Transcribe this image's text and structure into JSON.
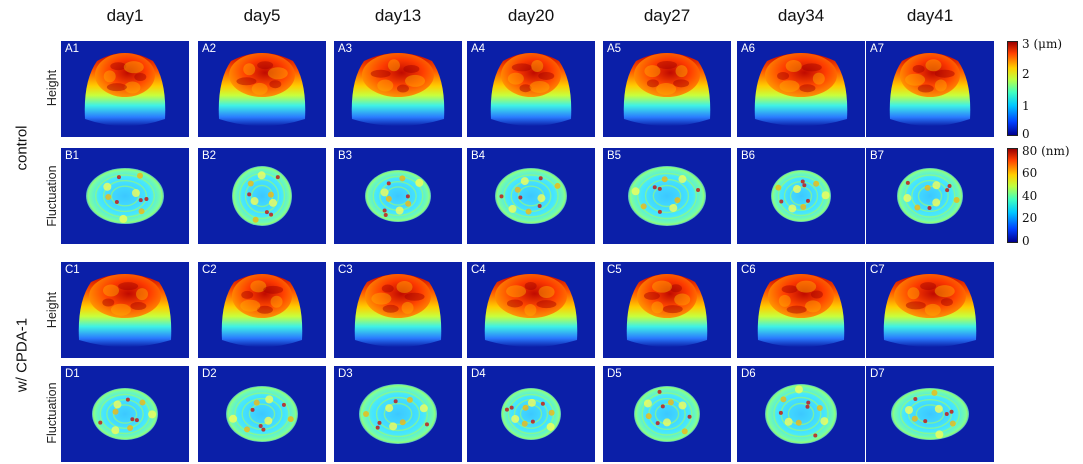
{
  "columns": [
    "day1",
    "day5",
    "day13",
    "day20",
    "day27",
    "day34",
    "day41"
  ],
  "groups": [
    {
      "label": "control"
    },
    {
      "label": "w/ CPDA-1"
    }
  ],
  "rows": [
    {
      "label": "Height",
      "kind": "height",
      "panels": [
        "A1",
        "A2",
        "A3",
        "A4",
        "A5",
        "A6",
        "A7"
      ]
    },
    {
      "label": "Fluctuation",
      "kind": "fluct",
      "panels": [
        "B1",
        "B2",
        "B3",
        "B4",
        "B5",
        "B6",
        "B7"
      ]
    },
    {
      "label": "Height",
      "kind": "height",
      "panels": [
        "C1",
        "C2",
        "C3",
        "C4",
        "C5",
        "C6",
        "C7"
      ]
    },
    {
      "label": "Fluctuation",
      "kind": "fluct",
      "panels": [
        "D1",
        "D2",
        "D3",
        "D4",
        "D5",
        "D6",
        "D7"
      ]
    }
  ],
  "colorbars": {
    "height": {
      "ticks": [
        "3",
        "2",
        "1",
        "0"
      ],
      "unit": "(μm)"
    },
    "fluctuation": {
      "ticks": [
        "80",
        "60",
        "40",
        "20",
        "0"
      ],
      "unit": "(nm)"
    }
  },
  "colors": {
    "background_blue": "#0b1fa8",
    "colormap": "jet"
  }
}
